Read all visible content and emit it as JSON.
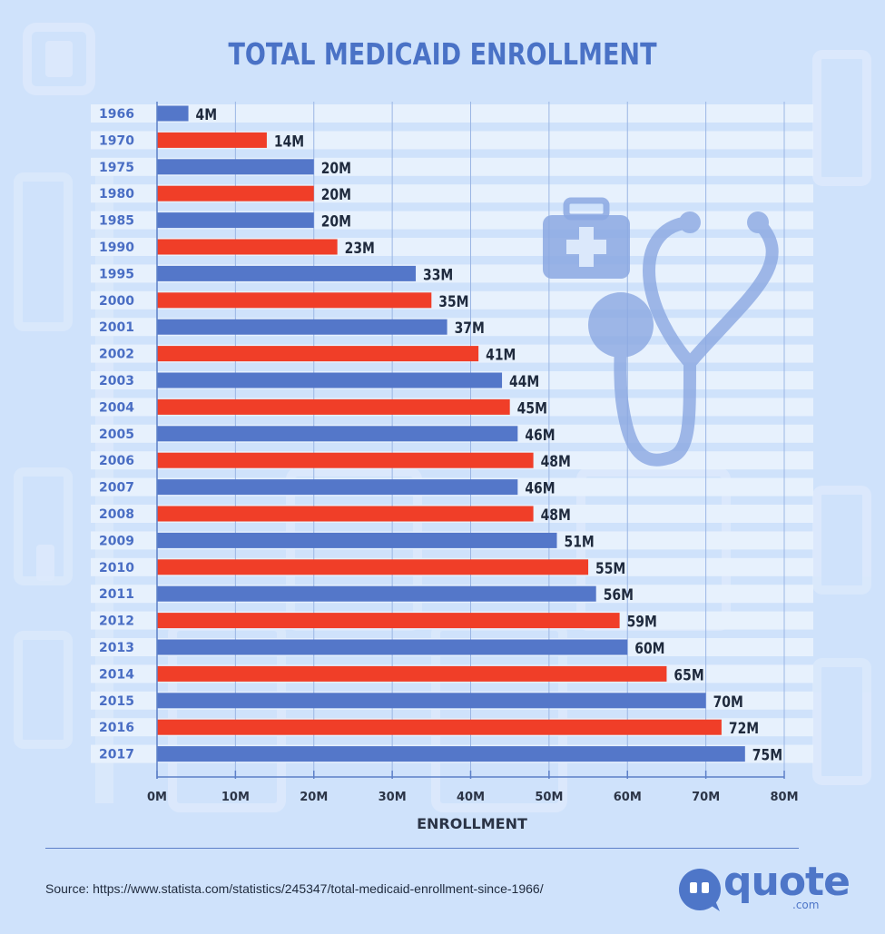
{
  "chart_data": {
    "type": "bar",
    "orientation": "horizontal",
    "title": "TOTAL MEDICAID ENROLLMENT",
    "xlabel": "ENROLLMENT",
    "ylabel": "",
    "xlim": [
      0,
      80
    ],
    "x_ticks": [
      "0M",
      "10M",
      "20M",
      "30M",
      "40M",
      "50M",
      "60M",
      "70M",
      "80M"
    ],
    "categories": [
      "1966",
      "1970",
      "1975",
      "1980",
      "1985",
      "1990",
      "1995",
      "2000",
      "2001",
      "2002",
      "2003",
      "2004",
      "2005",
      "2006",
      "2007",
      "2008",
      "2009",
      "2010",
      "2011",
      "2012",
      "2013",
      "2014",
      "2015",
      "2016",
      "2017"
    ],
    "values": [
      4,
      14,
      20,
      20,
      20,
      23,
      33,
      35,
      37,
      41,
      44,
      45,
      46,
      48,
      46,
      48,
      51,
      55,
      56,
      59,
      60,
      65,
      70,
      72,
      75
    ],
    "value_labels": [
      "4M",
      "14M",
      "20M",
      "20M",
      "20M",
      "23M",
      "33M",
      "35M",
      "37M",
      "41M",
      "44M",
      "45M",
      "46M",
      "48M",
      "46M",
      "48M",
      "51M",
      "55M",
      "56M",
      "59M",
      "60M",
      "65M",
      "70M",
      "72M",
      "75M"
    ],
    "bar_colors": [
      "#5477c9",
      "#f03e28"
    ],
    "grid": true
  },
  "footer": {
    "source": "Source: https://www.statista.com/statistics/245347/total-medicaid-enrollment-since-1966/"
  },
  "logo": {
    "text": "quote",
    "suffix": ".com"
  },
  "icons": [
    "medical-kit-icon",
    "stethoscope-icon"
  ]
}
